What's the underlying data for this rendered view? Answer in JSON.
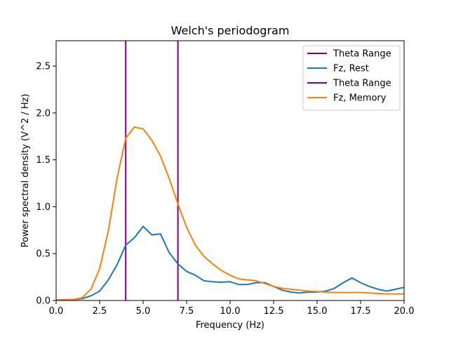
{
  "chart_data": {
    "type": "line",
    "title": "Welch's periodogram",
    "xlabel": "Frequency (Hz)",
    "ylabel": "Power spectral density (V^2 / Hz)",
    "xlim": [
      0,
      20
    ],
    "ylim": [
      0,
      2.77
    ],
    "grid": false,
    "legend_position": "top-right",
    "x_ticks": [
      0,
      2.5,
      5,
      7.5,
      10,
      12.5,
      15,
      17.5,
      20
    ],
    "x_tick_labels": [
      "0.0",
      "2.5",
      "5.0",
      "7.5",
      "10.0",
      "12.5",
      "15.0",
      "17.5",
      "20.0"
    ],
    "y_ticks": [
      0,
      0.5,
      1,
      1.5,
      2,
      2.5
    ],
    "y_tick_labels": [
      "0.0",
      "0.5",
      "1.0",
      "1.5",
      "2.0",
      "2.5"
    ],
    "vlines": [
      {
        "name": "Theta Range",
        "x": 4,
        "color": "#800080"
      },
      {
        "name": "Theta Range",
        "x": 7,
        "color": "#800080"
      }
    ],
    "series": [
      {
        "name": "Fz, Rest",
        "color": "#1f77b4",
        "x": [
          0,
          0.5,
          1,
          1.5,
          2,
          2.5,
          3,
          3.5,
          4,
          4.5,
          5,
          5.5,
          6,
          6.5,
          7,
          7.5,
          8,
          8.5,
          9,
          9.5,
          10,
          10.5,
          11,
          11.5,
          12,
          12.5,
          13,
          13.5,
          14,
          14.5,
          15,
          15.5,
          16,
          16.5,
          17,
          17.5,
          18,
          18.5,
          19,
          19.5,
          20
        ],
        "y": [
          0.005,
          0.008,
          0.01,
          0.02,
          0.05,
          0.1,
          0.22,
          0.38,
          0.59,
          0.67,
          0.79,
          0.7,
          0.71,
          0.51,
          0.39,
          0.31,
          0.27,
          0.21,
          0.2,
          0.195,
          0.2,
          0.17,
          0.17,
          0.19,
          0.19,
          0.15,
          0.11,
          0.09,
          0.08,
          0.09,
          0.09,
          0.1,
          0.13,
          0.19,
          0.24,
          0.19,
          0.15,
          0.12,
          0.1,
          0.12,
          0.14
        ]
      },
      {
        "name": "Fz, Memory",
        "color": "#ff7f0e",
        "x": [
          0,
          0.5,
          1,
          1.5,
          2,
          2.5,
          3,
          3.5,
          4,
          4.5,
          5,
          5.5,
          6,
          6.5,
          7,
          7.5,
          8,
          8.5,
          9,
          9.5,
          10,
          10.5,
          11,
          11.5,
          12,
          12.5,
          13,
          13.5,
          14,
          14.5,
          15,
          15.5,
          16,
          16.5,
          17,
          17.5,
          18,
          18.5,
          19,
          19.5,
          20
        ],
        "y": [
          0.005,
          0.006,
          0.01,
          0.03,
          0.12,
          0.34,
          0.74,
          1.3,
          1.73,
          1.85,
          1.83,
          1.71,
          1.54,
          1.3,
          1.03,
          0.78,
          0.59,
          0.47,
          0.39,
          0.32,
          0.27,
          0.23,
          0.22,
          0.21,
          0.18,
          0.15,
          0.13,
          0.12,
          0.11,
          0.1,
          0.095,
          0.09,
          0.085,
          0.085,
          0.085,
          0.085,
          0.08,
          0.075,
          0.07,
          0.07,
          0.07
        ]
      }
    ],
    "legend": [
      {
        "label": "Theta Range",
        "color": "#800080"
      },
      {
        "label": "Fz, Rest",
        "color": "#1f77b4"
      },
      {
        "label": "Theta Range",
        "color": "#800080"
      },
      {
        "label": "Fz, Memory",
        "color": "#ff7f0e"
      }
    ]
  }
}
